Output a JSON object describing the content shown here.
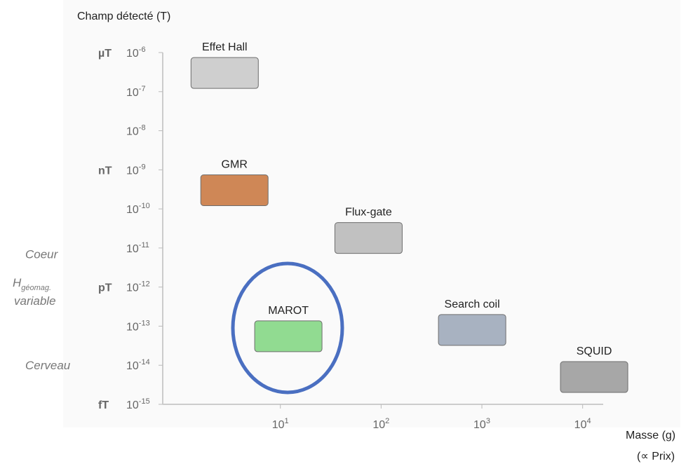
{
  "chart_data": {
    "type": "scatter",
    "y_label": "Champ détecté (T)",
    "x_label": "Masse (g)",
    "x_label2": "(∝ Prix)",
    "log_x": true,
    "log_y": true,
    "xlim": [
      0.68,
      16000
    ],
    "ylim": [
      1e-15,
      1e-06
    ],
    "xticks": [
      {
        "value": 10,
        "label": "10^1"
      },
      {
        "value": 100,
        "label": "10^2"
      },
      {
        "value": 1000,
        "label": "10^3"
      },
      {
        "value": 10000,
        "label": "10^4"
      }
    ],
    "yticks": [
      {
        "value": 1e-06,
        "label": "10^-6"
      },
      {
        "value": 1e-07,
        "label": "10^-7"
      },
      {
        "value": 1e-08,
        "label": "10^-8"
      },
      {
        "value": 1e-09,
        "label": "10^-9"
      },
      {
        "value": 1e-10,
        "label": "10^-10"
      },
      {
        "value": 1e-11,
        "label": "10^-11"
      },
      {
        "value": 1e-12,
        "label": "10^-12"
      },
      {
        "value": 1e-13,
        "label": "10^-13"
      },
      {
        "value": 1e-14,
        "label": "10^-14"
      },
      {
        "value": 1e-15,
        "label": "10^-15"
      }
    ],
    "unit_ticks": [
      {
        "value": 1e-06,
        "label": "µT"
      },
      {
        "value": 1e-09,
        "label": "nT"
      },
      {
        "value": 1e-12,
        "label": "pT"
      },
      {
        "value": 1e-15,
        "label": "fT"
      }
    ],
    "annotations": [
      {
        "text": "Coeur",
        "y": 7e-12
      },
      {
        "text": "H",
        "subscript": "géomag.",
        "text2": "variable",
        "y": 8e-13
      },
      {
        "text": "Cerveau",
        "y": 1e-14
      }
    ],
    "labels": [
      "Effet Hall",
      "GMR",
      "Flux-gate",
      "MAROT",
      "Search coil",
      "SQUID"
    ],
    "x": [
      2.8,
      3.5,
      75,
      12,
      800,
      13000
    ],
    "y": [
      3e-07,
      3e-10,
      1.8e-11,
      5.5e-14,
      8e-14,
      5e-15
    ],
    "colors": [
      "#c8c8c8",
      "#c8743a",
      "#b8b8b8",
      "#7fd67f",
      "#9aa6b8",
      "#999999"
    ]
  }
}
